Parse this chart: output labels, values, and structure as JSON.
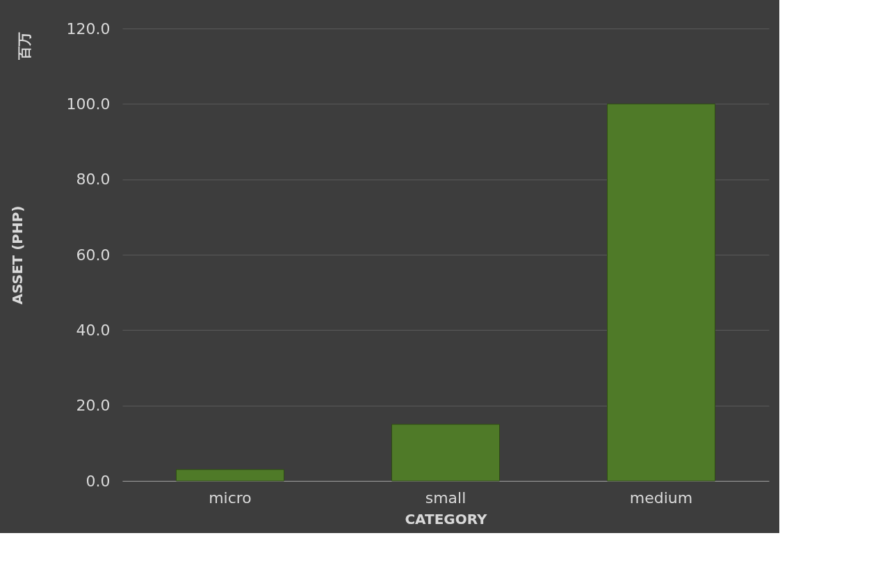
{
  "chart_data": {
    "type": "bar",
    "xlabel": "CATEGORY",
    "ylabel": "ASSET (PHP)",
    "annotations": [
      "百万"
    ],
    "categories": [
      "micro",
      "small",
      "medium"
    ],
    "values": [
      3.0,
      15.0,
      100.0
    ],
    "color": "#4f7a28",
    "ylim": [
      0,
      120
    ],
    "yticks": [
      {
        "value": 0,
        "label": "0.0"
      },
      {
        "value": 20,
        "label": "20.0"
      },
      {
        "value": 40,
        "label": "40.0"
      },
      {
        "value": 60,
        "label": "60.0"
      },
      {
        "value": 80,
        "label": "80.0"
      },
      {
        "value": 100,
        "label": "100.0"
      },
      {
        "value": 120,
        "label": "120.0"
      }
    ],
    "grid": "y"
  }
}
